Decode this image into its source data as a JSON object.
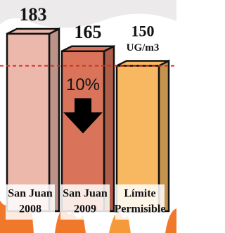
{
  "chart_data": {
    "type": "bar",
    "categories": [
      [
        "San Juan",
        "2008"
      ],
      [
        "San Juan",
        "2009"
      ],
      [
        "Límite",
        "Permisible"
      ]
    ],
    "values": [
      183,
      165,
      150
    ],
    "colors": [
      "#ebb8ab",
      "#d9745a",
      "#f8b862"
    ],
    "unit": "UG/m3",
    "annotation": "10%",
    "reference_color": "#d42a1e"
  }
}
